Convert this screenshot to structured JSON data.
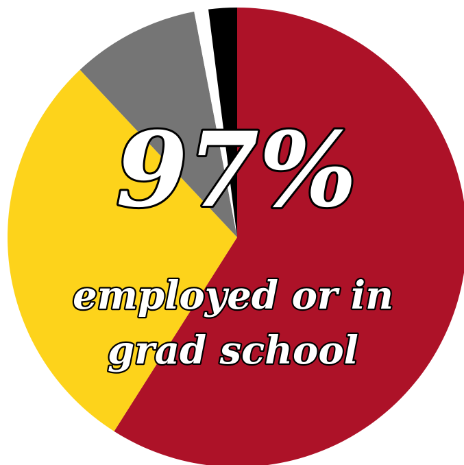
{
  "chart_data": {
    "type": "pie",
    "title": "",
    "slices": [
      {
        "value": 59,
        "color": "#ad1228"
      },
      {
        "value": 29,
        "color": "#fdd31b"
      },
      {
        "value": 9,
        "color": "#757575"
      },
      {
        "value": 1,
        "color": "#ffffff"
      },
      {
        "value": 2,
        "color": "#000000"
      }
    ],
    "start_angle_deg": 0,
    "direction": "clockwise",
    "annotations": {
      "percent": "97%",
      "line1": "employed or in",
      "line2": "grad school"
    }
  }
}
